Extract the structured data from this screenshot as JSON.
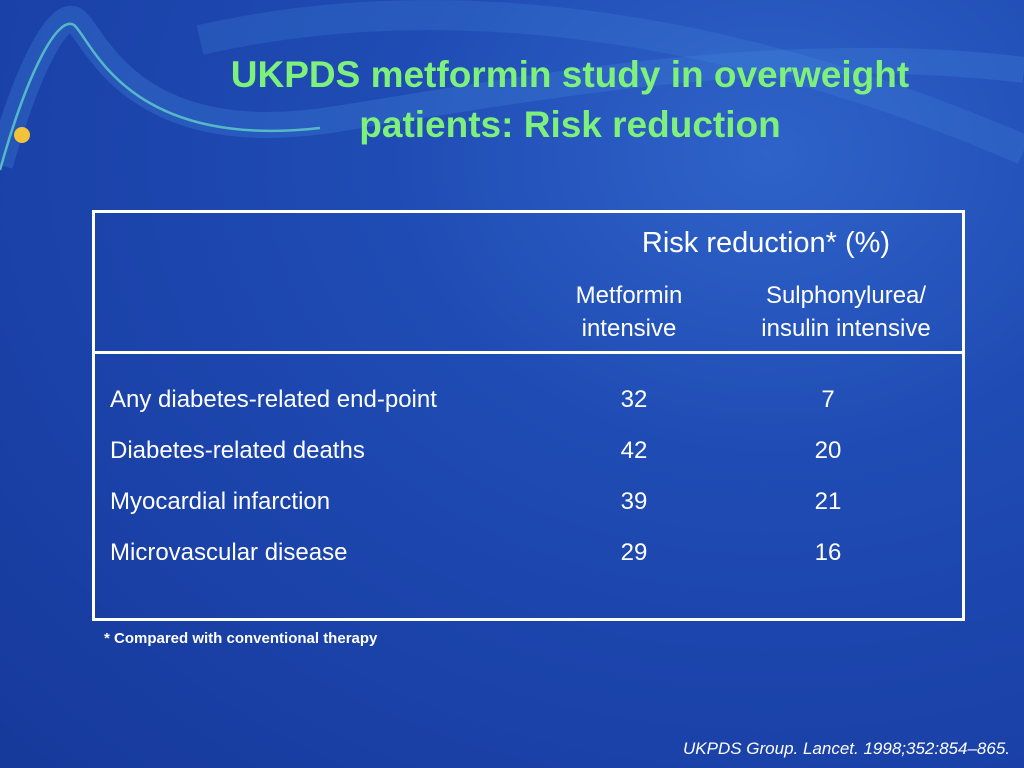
{
  "slide": {
    "title_line1": "UKPDS metformin study in overweight",
    "title_line2": "patients: Risk reduction",
    "footnote": "* Compared with conventional therapy",
    "citation": "UKPDS Group. Lancet. 1998;352:854–865."
  },
  "table": {
    "group_header": "Risk reduction* (%)",
    "columns": [
      {
        "line1": "Metformin",
        "line2": "intensive"
      },
      {
        "line1": "Sulphonylurea/",
        "line2": "insulin intensive"
      }
    ],
    "rows": [
      {
        "label": "Any diabetes-related end-point",
        "metformin": "32",
        "sulphonylurea": "7"
      },
      {
        "label": "Diabetes-related deaths",
        "metformin": "42",
        "sulphonylurea": "20"
      },
      {
        "label": "Myocardial infarction",
        "metformin": "39",
        "sulphonylurea": "21"
      },
      {
        "label": "Microvascular disease",
        "metformin": "29",
        "sulphonylurea": "16"
      }
    ]
  },
  "colors": {
    "background": "#1f4cb4",
    "title": "#7ef07c",
    "text": "#ffffff",
    "accent_dot": "#f2c23a"
  }
}
